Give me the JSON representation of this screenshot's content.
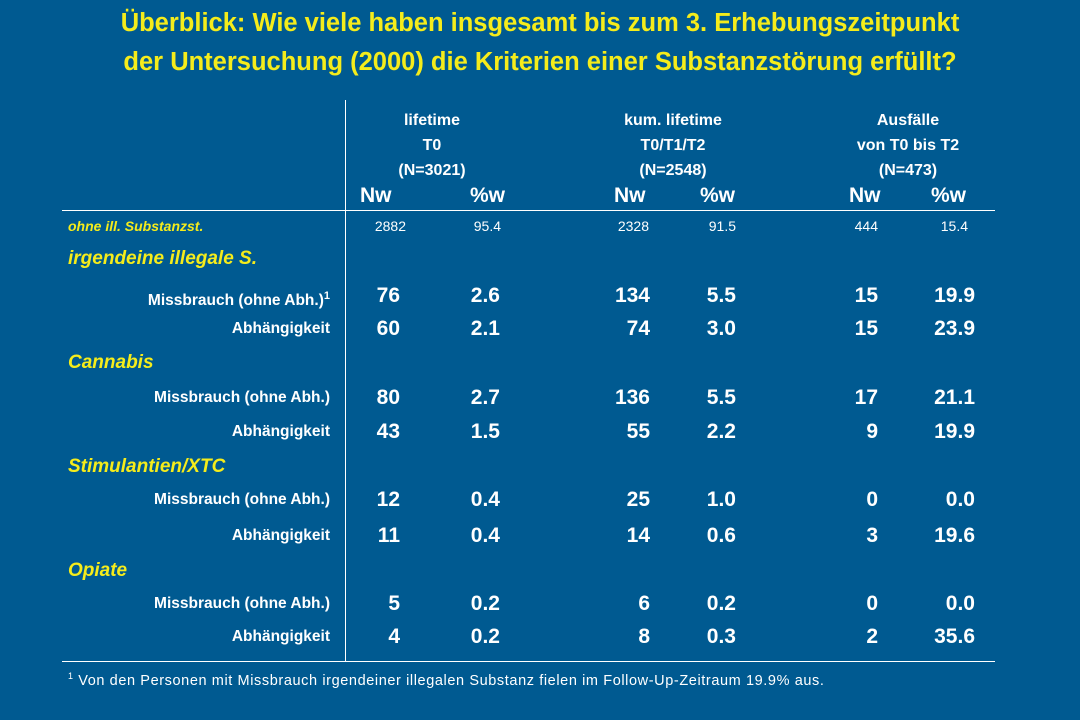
{
  "title": {
    "line1": "Überblick: Wie viele haben insgesamt bis zum 3. Erhebungszeitpunkt",
    "line2": "der Untersuchung (2000) die Kriterien einer Substanzstörung erfüllt?"
  },
  "header": {
    "groups": [
      {
        "line1": "lifetime",
        "line2": "T0",
        "line3": "(N=3021)"
      },
      {
        "line1": "kum. lifetime",
        "line2": "T0/T1/T2",
        "line3": "(N=2548)"
      },
      {
        "line1": "Ausfälle",
        "line2": "von T0 bis T2",
        "line3": "(N=473)"
      }
    ],
    "columns": [
      "Nw",
      "%w",
      "Nw",
      "%w",
      "Nw",
      "%w"
    ]
  },
  "first_row": {
    "label": "ohne ill. Substanzst.",
    "values": [
      "2882",
      "95.4",
      "2328",
      "91.5",
      "444",
      "15.4"
    ]
  },
  "groups": [
    {
      "name": "irgendeine illegale S.",
      "rows": [
        {
          "label": "Missbrauch (ohne Abh.)",
          "sup": "1",
          "values": [
            "76",
            "2.6",
            "134",
            "5.5",
            "15",
            "19.9"
          ]
        },
        {
          "label": "Abhängigkeit",
          "sup": "",
          "values": [
            "60",
            "2.1",
            "74",
            "3.0",
            "15",
            "23.9"
          ]
        }
      ]
    },
    {
      "name": "Cannabis",
      "rows": [
        {
          "label": "Missbrauch (ohne Abh.)",
          "sup": "",
          "values": [
            "80",
            "2.7",
            "136",
            "5.5",
            "17",
            "21.1"
          ]
        },
        {
          "label": "Abhängigkeit",
          "sup": "",
          "values": [
            "43",
            "1.5",
            "55",
            "2.2",
            "9",
            "19.9"
          ]
        }
      ]
    },
    {
      "name": "Stimulantien/XTC",
      "rows": [
        {
          "label": "Missbrauch (ohne Abh.)",
          "sup": "",
          "values": [
            "12",
            "0.4",
            "25",
            "1.0",
            "0",
            "0.0"
          ]
        },
        {
          "label": "Abhängigkeit",
          "sup": "",
          "values": [
            "11",
            "0.4",
            "14",
            "0.6",
            "3",
            "19.6"
          ]
        }
      ]
    },
    {
      "name": "Opiate",
      "rows": [
        {
          "label": "Missbrauch (ohne Abh.)",
          "sup": "",
          "values": [
            "5",
            "0.2",
            "6",
            "0.2",
            "0",
            "0.0"
          ]
        },
        {
          "label": "Abhängigkeit",
          "sup": "",
          "values": [
            "4",
            "0.2",
            "8",
            "0.3",
            "2",
            "35.6"
          ]
        }
      ]
    }
  ],
  "footnote": {
    "marker": "1",
    "text": "Von den Personen mit Missbrauch irgendeiner illegalen Substanz fielen im Follow-Up-Zeitraum 19.9% aus."
  },
  "colors": {
    "background": "#005a91",
    "title": "#f5ec1b",
    "text": "#ffffff"
  }
}
